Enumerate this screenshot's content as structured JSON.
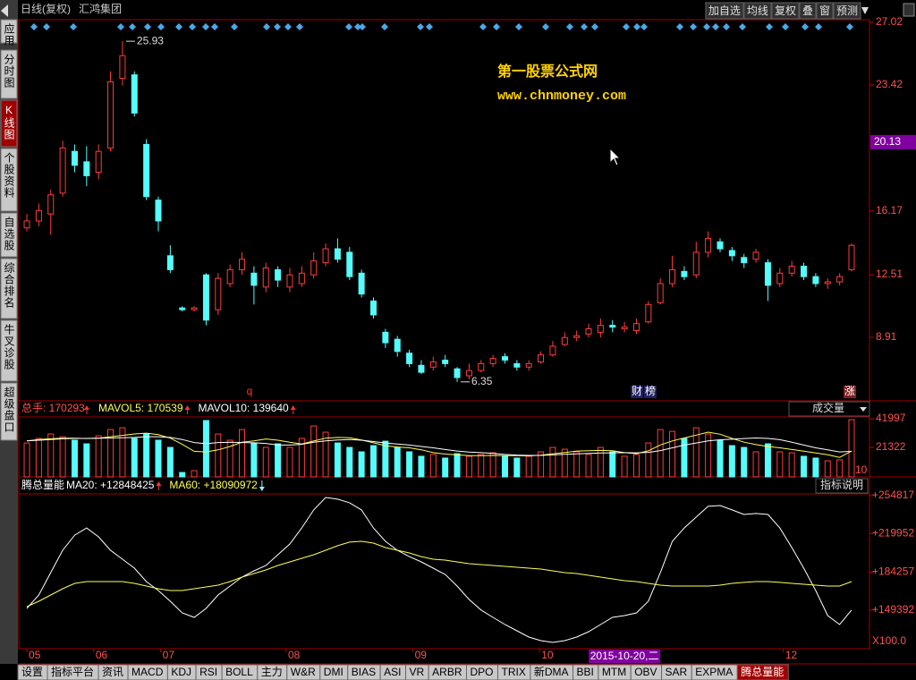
{
  "header": {
    "period": "日线(复权)",
    "stock": "汇鸿集团",
    "buttons": [
      "加自选",
      "均线",
      "复权",
      "叠",
      "窗",
      "预测"
    ]
  },
  "sidebar": {
    "tabs": [
      "应用",
      "分时图",
      "K线图",
      "个股资料",
      "自选股",
      "综合排名",
      "牛叉诊股",
      "超级盘口"
    ],
    "active": "K线图"
  },
  "watermark": {
    "title": "第一股票公式网",
    "url": "www.chnmoney.com"
  },
  "events": [
    "q",
    "财",
    "榜",
    "涨"
  ],
  "chart_data": [
    {
      "type": "candlestick",
      "up_color": "#ff3c3c",
      "down_color": "#54fcfc",
      "xlim": [
        -0.6,
        69.6
      ],
      "ylim": [
        5.26,
        27.17
      ],
      "yticks": [
        8.91,
        12.51,
        16.17,
        23.42,
        27.02
      ],
      "cursor_price": 20.13,
      "high_label": 25.93,
      "low_label": 6.35,
      "open": [
        15.2,
        15.6,
        16.0,
        17.2,
        19.6,
        19.0,
        18.4,
        19.8,
        23.8,
        24.0,
        20.0,
        16.8,
        13.6,
        10.6,
        10.5,
        12.5,
        10.5,
        12.0,
        12.8,
        12.6,
        11.8,
        12.8,
        11.8,
        12.0,
        12.5,
        13.2,
        14.0,
        13.8,
        12.6,
        11.0,
        9.2,
        8.8,
        8.0,
        7.3,
        7.2,
        7.6,
        7.1,
        6.7,
        7.0,
        7.4,
        7.8,
        7.4,
        7.2,
        7.5,
        7.9,
        8.5,
        8.9,
        9.1,
        9.2,
        9.6,
        9.4,
        9.3,
        9.8,
        10.9,
        12.0,
        12.7,
        12.5,
        13.8,
        14.4,
        13.9,
        13.5,
        13.4,
        13.2,
        12.0,
        12.6,
        13.0,
        12.4,
        12.0,
        12.1,
        12.8
      ],
      "high": [
        16.0,
        16.6,
        17.4,
        20.2,
        20.0,
        19.9,
        20.0,
        24.2,
        25.93,
        24.2,
        20.3,
        17.0,
        14.2,
        10.7,
        10.7,
        12.6,
        12.6,
        13.1,
        13.8,
        13.0,
        13.2,
        13.0,
        12.9,
        13.0,
        13.8,
        14.3,
        14.6,
        14.1,
        12.8,
        11.2,
        9.4,
        9.0,
        8.2,
        7.6,
        7.8,
        7.9,
        7.2,
        7.4,
        7.6,
        7.9,
        8.0,
        7.6,
        7.6,
        8.1,
        8.7,
        9.2,
        9.3,
        9.7,
        10.0,
        9.9,
        9.8,
        10.0,
        11.0,
        12.3,
        13.6,
        13.0,
        14.4,
        15.0,
        14.6,
        14.1,
        13.7,
        14.0,
        13.4,
        12.9,
        13.3,
        13.2,
        12.6,
        12.3,
        12.6,
        14.3
      ],
      "low": [
        15.0,
        15.3,
        14.8,
        17.0,
        18.4,
        17.6,
        18.0,
        19.6,
        23.4,
        21.6,
        16.8,
        15.0,
        12.6,
        10.4,
        10.4,
        9.6,
        10.2,
        11.8,
        12.5,
        10.8,
        11.5,
        11.8,
        11.5,
        11.8,
        12.3,
        13.0,
        13.2,
        12.2,
        11.2,
        10.0,
        8.3,
        7.8,
        7.2,
        6.8,
        7.0,
        7.2,
        6.35,
        6.5,
        6.9,
        7.2,
        7.4,
        7.0,
        7.0,
        7.4,
        7.8,
        8.4,
        8.7,
        8.9,
        8.9,
        9.2,
        9.2,
        9.1,
        9.7,
        10.8,
        11.8,
        12.2,
        12.3,
        13.5,
        13.8,
        13.3,
        12.9,
        13.2,
        11.0,
        11.8,
        12.4,
        12.2,
        11.8,
        11.7,
        11.9,
        12.7
      ],
      "close": [
        15.6,
        16.2,
        17.1,
        19.8,
        18.8,
        18.2,
        19.6,
        23.6,
        25.1,
        21.8,
        17.0,
        15.6,
        12.8,
        10.5,
        10.6,
        9.9,
        12.3,
        12.8,
        13.4,
        11.9,
        12.9,
        12.2,
        12.5,
        12.6,
        13.3,
        14.0,
        13.4,
        12.4,
        11.4,
        10.2,
        8.6,
        8.1,
        7.4,
        6.9,
        7.5,
        7.4,
        6.6,
        7.0,
        7.4,
        7.7,
        7.6,
        7.2,
        7.4,
        7.9,
        8.4,
        8.9,
        9.0,
        9.4,
        9.6,
        9.5,
        9.5,
        9.7,
        10.8,
        12.0,
        12.8,
        12.4,
        13.8,
        14.6,
        14.0,
        13.6,
        13.2,
        13.8,
        11.9,
        12.6,
        13.0,
        12.4,
        12.0,
        12.1,
        12.4,
        14.2
      ]
    },
    {
      "type": "volume",
      "bar_label": "总手: 170293",
      "selector": "成交量",
      "unit_label": "X10",
      "xlim": [
        -0.6,
        69.6
      ],
      "ylim": [
        0,
        43300
      ],
      "yticks": [
        41997,
        21322
      ],
      "values": [
        24500,
        27800,
        31000,
        29000,
        26500,
        23900,
        29700,
        34200,
        35500,
        27800,
        31000,
        26500,
        21300,
        3200,
        4500,
        40700,
        31000,
        26500,
        34200,
        24500,
        21300,
        23900,
        21300,
        27800,
        36800,
        32300,
        24500,
        21300,
        18100,
        22600,
        25800,
        21300,
        18100,
        14900,
        16200,
        13600,
        16800,
        14900,
        16200,
        17400,
        14900,
        13600,
        14900,
        18100,
        21300,
        20000,
        18100,
        16200,
        21300,
        18100,
        14900,
        16200,
        24500,
        34200,
        32900,
        27800,
        35500,
        31000,
        26500,
        22600,
        21300,
        18100,
        23900,
        18100,
        17400,
        14900,
        13600,
        11600,
        12300,
        41300
      ],
      "series": [
        {
          "name": "MAVOL5: 170539",
          "color": "#ffff54",
          "values": [
            26000,
            27000,
            27500,
            28000,
            28000,
            27700,
            28000,
            29000,
            30000,
            31000,
            31600,
            30500,
            28000,
            23500,
            18500,
            18000,
            19500,
            22000,
            25000,
            26000,
            27400,
            26500,
            25000,
            23800,
            25900,
            28000,
            28500,
            28300,
            26600,
            24600,
            22500,
            21600,
            21000,
            19600,
            17500,
            16500,
            15900,
            15300,
            15300,
            15500,
            15300,
            15300,
            15200,
            15700,
            16600,
            17600,
            18700,
            18900,
            19100,
            18900,
            17500,
            16800,
            18800,
            23100,
            26000,
            28100,
            30200,
            32300,
            30800,
            27800,
            25100,
            23300,
            22000,
            21000,
            19800,
            18600,
            17300,
            16000,
            14100,
            18700
          ]
        },
        {
          "name": "MAVOL10: 139640",
          "color": "#ffffff",
          "values": [
            26000,
            26500,
            27000,
            27500,
            27800,
            27800,
            27900,
            28100,
            28300,
            28500,
            29000,
            29000,
            28500,
            27000,
            24800,
            24000,
            24800,
            25000,
            24800,
            24600,
            24200,
            23000,
            23000,
            23500,
            25000,
            26000,
            26600,
            27000,
            26500,
            25500,
            24500,
            23700,
            23000,
            22000,
            21000,
            19800,
            18700,
            17900,
            17500,
            17000,
            16200,
            15800,
            15500,
            15500,
            15900,
            16300,
            16600,
            17000,
            17300,
            17400,
            17500,
            17400,
            17700,
            19000,
            21000,
            23000,
            24500,
            26000,
            26800,
            27200,
            27700,
            28100,
            27800,
            26900,
            25000,
            23000,
            21000,
            19500,
            18000,
            18500
          ]
        }
      ]
    },
    {
      "type": "line",
      "title": "腾总量能",
      "help": "指标说明",
      "unit_label": "X100.0",
      "xlim": [
        -0.6,
        69.6
      ],
      "ylim": [
        113700,
        256400
      ],
      "yticks": [
        {
          "value": 254817,
          "label": "+254817"
        },
        {
          "value": 219952,
          "label": "+219952"
        },
        {
          "value": 184257,
          "label": "+184257"
        },
        {
          "value": 149392,
          "label": "+149392"
        }
      ],
      "xticks": [
        {
          "value": 0,
          "label": "05"
        },
        {
          "value": 5.6,
          "label": "06"
        },
        {
          "value": 11.2,
          "label": "07"
        },
        {
          "value": 21.7,
          "label": "08"
        },
        {
          "value": 32.3,
          "label": "09"
        },
        {
          "value": 42.9,
          "label": "10"
        },
        {
          "value": 63.3,
          "label": "12"
        }
      ],
      "cursor_x": {
        "value": 50,
        "label": "2015-10-20,二"
      },
      "series": [
        {
          "name": "MA20: +12848425",
          "color": "#ffffff",
          "values": [
            150800,
            163200,
            183800,
            204400,
            218400,
            225000,
            216800,
            204400,
            196200,
            187900,
            175600,
            167300,
            157400,
            146700,
            142600,
            150800,
            163200,
            171400,
            179700,
            185500,
            190400,
            200300,
            210200,
            225000,
            241600,
            253100,
            251500,
            248200,
            241600,
            225000,
            212700,
            204400,
            198600,
            193700,
            187900,
            182200,
            171400,
            159100,
            149300,
            142600,
            136000,
            130200,
            124400,
            121100,
            119500,
            121100,
            124400,
            129400,
            136000,
            142600,
            144200,
            146700,
            157400,
            183800,
            212700,
            225000,
            235000,
            244900,
            245700,
            241600,
            237400,
            238300,
            237400,
            225000,
            206900,
            187900,
            167300,
            144200,
            136000,
            149300
          ]
        },
        {
          "name": "MA60: +18090972",
          "color": "#ffff54",
          "values": [
            152500,
            157400,
            163200,
            169000,
            173900,
            175600,
            175600,
            175600,
            175600,
            173900,
            171400,
            169000,
            167300,
            167300,
            169000,
            170600,
            172300,
            175600,
            179700,
            183000,
            186300,
            190400,
            193700,
            197000,
            200300,
            204400,
            208600,
            211900,
            212700,
            211000,
            206900,
            204400,
            202000,
            198600,
            196200,
            195400,
            193700,
            192100,
            191200,
            190400,
            189600,
            188800,
            187900,
            187100,
            185500,
            183800,
            183000,
            181300,
            179700,
            178000,
            176400,
            175600,
            173900,
            172300,
            171400,
            171400,
            171400,
            171400,
            172300,
            173900,
            174800,
            175600,
            175600,
            174800,
            173900,
            173100,
            172300,
            171400,
            171400,
            175600
          ]
        }
      ]
    }
  ],
  "bottom_tabs": {
    "tabs": [
      "设置",
      "指标平台",
      "资讯",
      "MACD",
      "KDJ",
      "RSI",
      "BOLL",
      "主力",
      "W&R",
      "DMI",
      "BIAS",
      "ASI",
      "VR",
      "ARBR",
      "DPO",
      "TRIX",
      "新DMA",
      "BBI",
      "MTM",
      "OBV",
      "SAR",
      "EXPMA",
      "腾总量能"
    ],
    "active": "腾总量能"
  }
}
